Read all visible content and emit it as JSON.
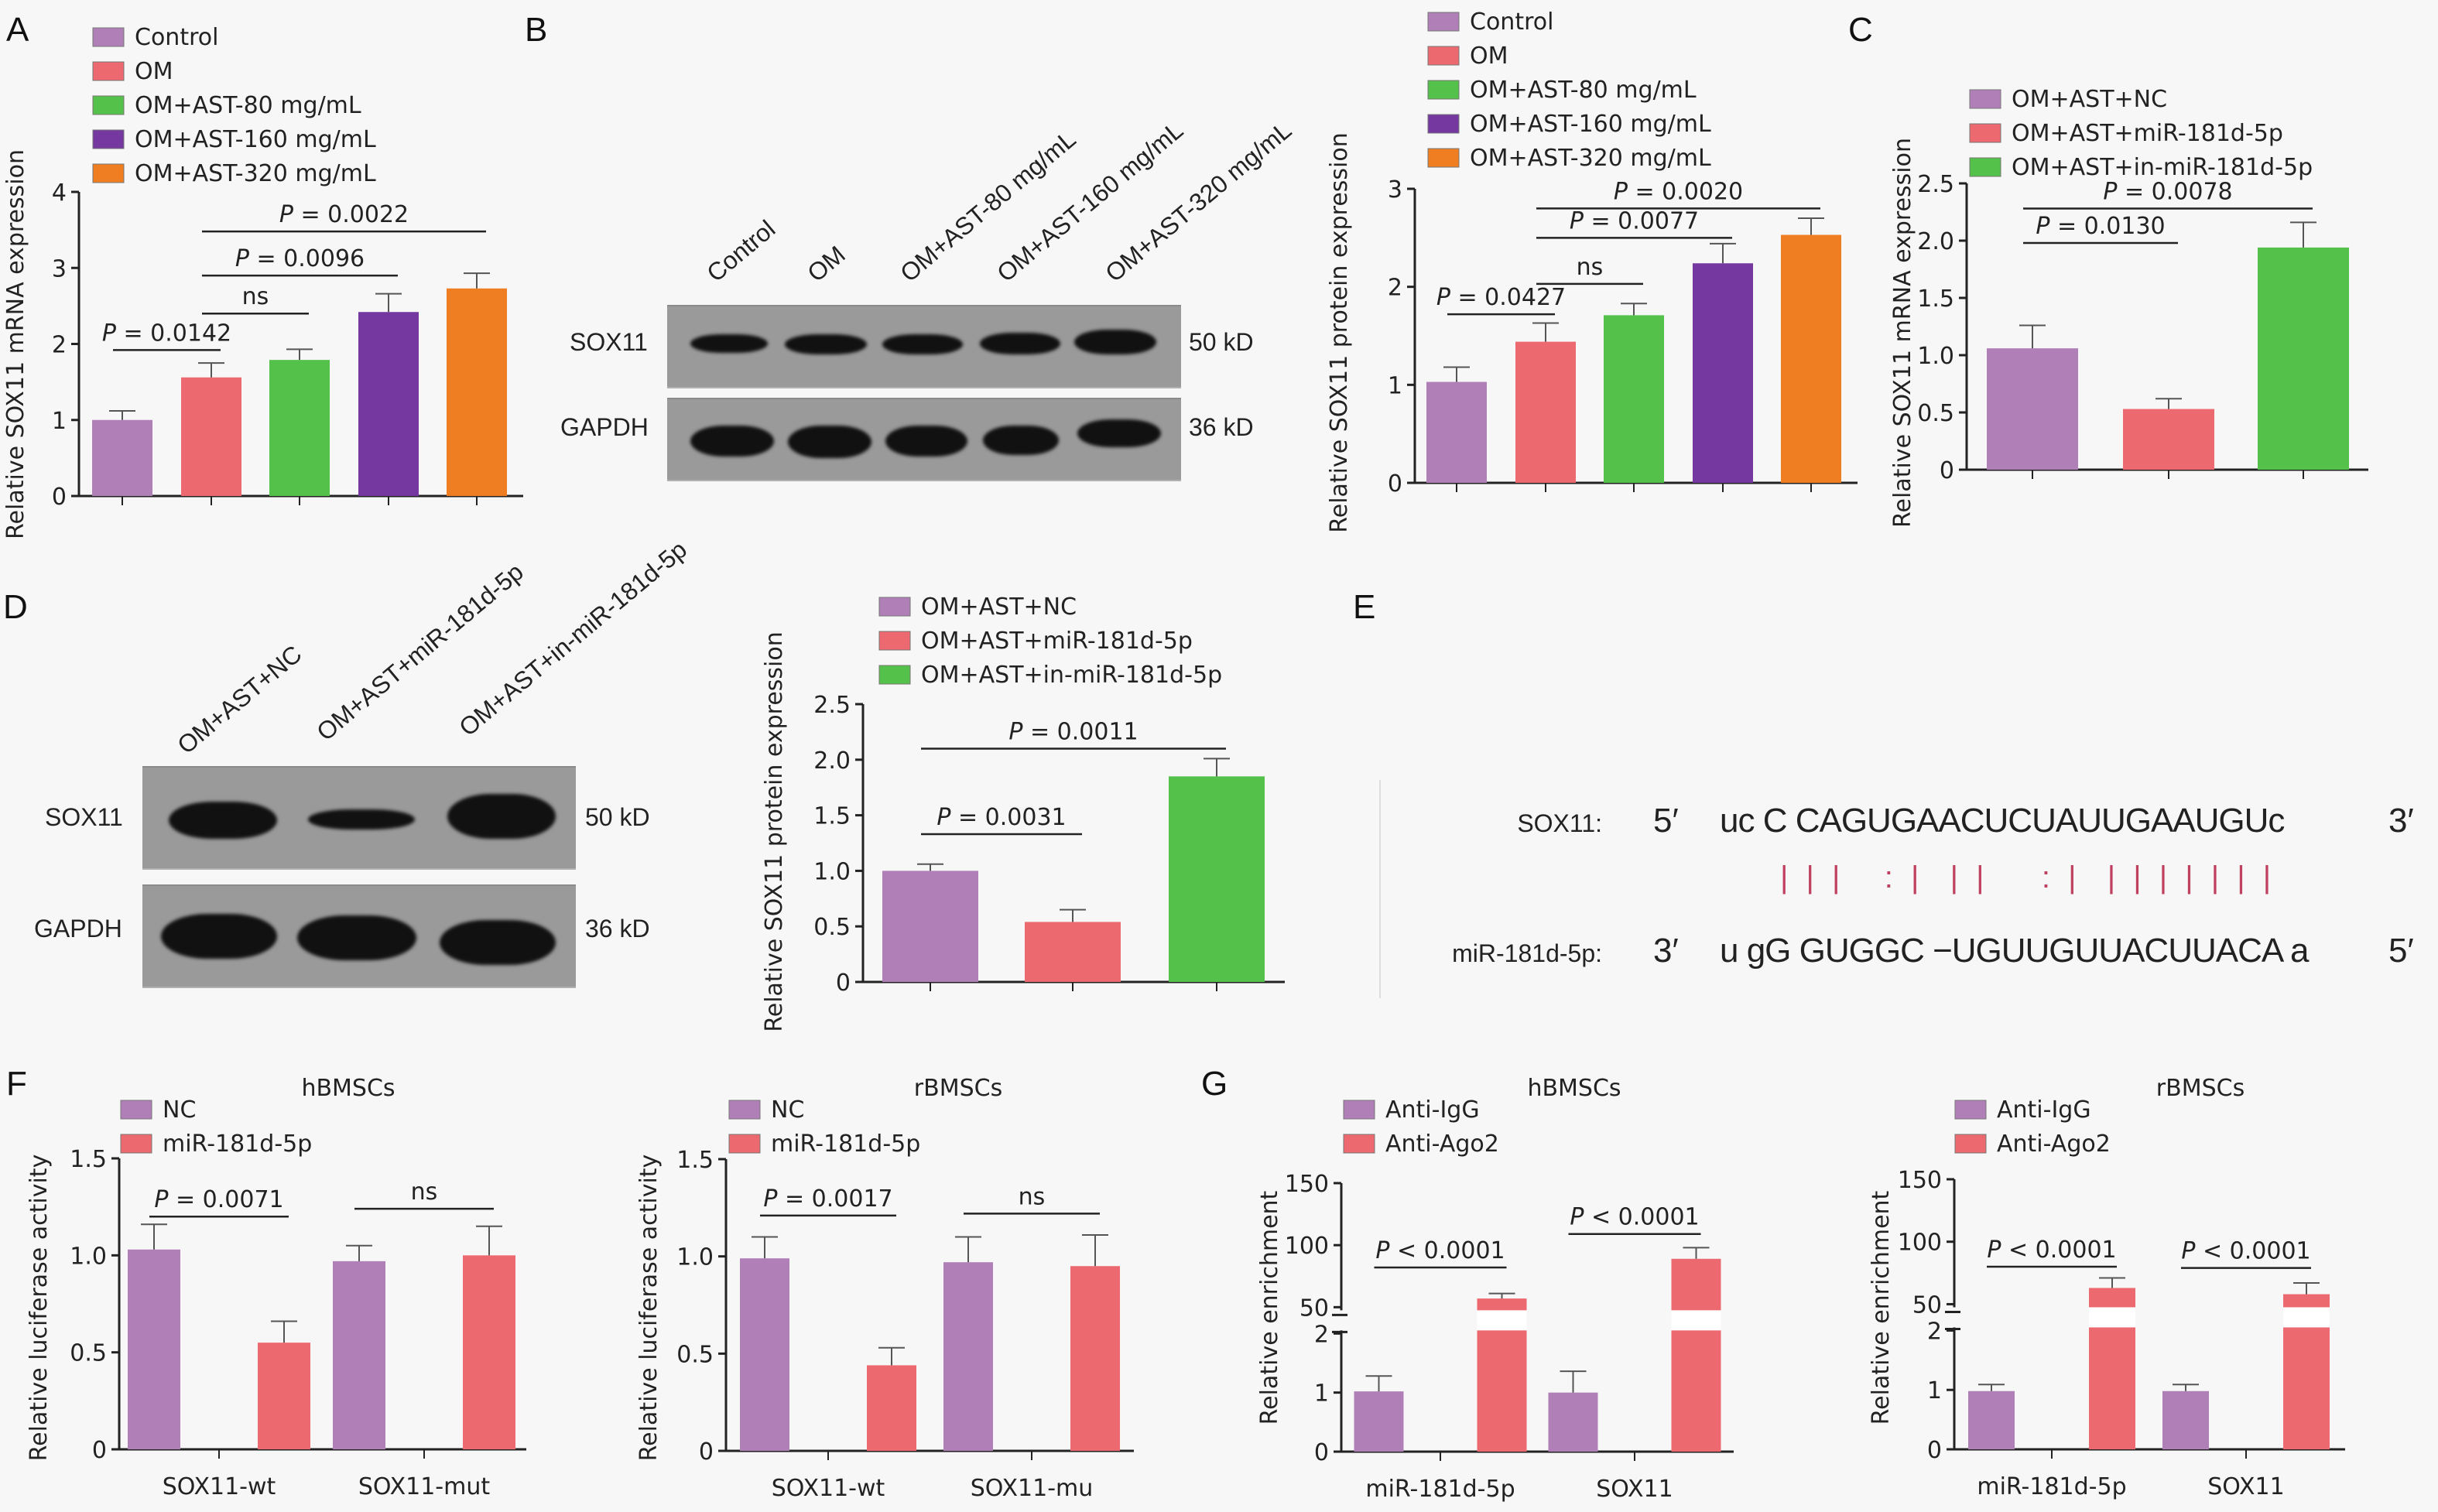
{
  "figure": {
    "panel_letters": [
      "A",
      "B",
      "C",
      "D",
      "E",
      "F",
      "G"
    ],
    "colors": {
      "control": "#b07fb8",
      "om": "#ec6a6f",
      "ast80": "#54c24a",
      "ast160": "#7538a0",
      "ast320": "#ef7d22",
      "nc": "#b07fb8",
      "mir": "#ec6a6f",
      "inmir": "#54c24a"
    }
  },
  "panelB_blot": {
    "lanes": [
      "Control",
      "OM",
      "OM+AST-80 mg/mL",
      "OM+AST-160 mg/mL",
      "OM+AST-320 mg/mL"
    ],
    "rows": [
      {
        "label": "SOX11",
        "size": "50 kD"
      },
      {
        "label": "GAPDH",
        "size": "36 kD"
      }
    ]
  },
  "panelD_blot": {
    "lanes": [
      "OM+AST+NC",
      "OM+AST+miR-181d-5p",
      "OM+AST+in-miR-181d-5p"
    ],
    "rows": [
      {
        "label": "SOX11",
        "size": "50 kD"
      },
      {
        "label": "GAPDH",
        "size": "36 kD"
      }
    ]
  },
  "panelE_seq": {
    "target_label": "SOX11:",
    "target_5": "5′",
    "target_seq": "uc C CAGUGAACUCUAUUGAAUGUc",
    "target_3": "3′",
    "pairing": "| | |   : |  | |    : |  | | | | | | |",
    "mirna_label": "miR-181d-5p:",
    "mirna_3": "3′",
    "mirna_seq": "u gG GUGGC −UGUUGUUACUUACA a",
    "mirna_5": "5′"
  },
  "chart_data": [
    {
      "id": "A",
      "type": "bar",
      "title": "",
      "ylabel": "Relative SOX11 mRNA expression",
      "xlabel": "",
      "ylim": [
        0,
        4
      ],
      "yticks": [
        "0",
        "1",
        "2",
        "3",
        "4"
      ],
      "categories": [
        "Control",
        "OM",
        "OM+AST-80 mg/mL",
        "OM+AST-160 mg/mL",
        "OM+AST-320 mg/mL"
      ],
      "values": [
        1.0,
        1.56,
        1.79,
        2.42,
        2.73
      ],
      "errors": [
        0.12,
        0.19,
        0.14,
        0.24,
        0.2
      ],
      "legend": [
        "Control",
        "OM",
        "OM+AST-80 mg/mL",
        "OM+AST-160 mg/mL",
        "OM+AST-320 mg/mL"
      ],
      "legend_position": "top-left",
      "annotations": [
        {
          "text": "P = 0.0142",
          "from": 0,
          "to": 1,
          "y": 1.92
        },
        {
          "text": "ns",
          "from": 1,
          "to": 2,
          "y": 2.4
        },
        {
          "text": "P = 0.0096",
          "from": 1,
          "to": 3,
          "y": 2.9
        },
        {
          "text": "P = 0.0022",
          "from": 1,
          "to": 4,
          "y": 3.48
        }
      ]
    },
    {
      "id": "B",
      "type": "bar",
      "ylabel": "Relative SOX11 protein expression",
      "xlabel": "",
      "ylim": [
        0,
        3
      ],
      "yticks": [
        "0",
        "1",
        "2",
        "3"
      ],
      "categories": [
        "Control",
        "OM",
        "OM+AST-80 mg/mL",
        "OM+AST-160 mg/mL",
        "OM+AST-320 mg/mL"
      ],
      "values": [
        1.03,
        1.44,
        1.71,
        2.24,
        2.53
      ],
      "errors": [
        0.15,
        0.19,
        0.12,
        0.2,
        0.17
      ],
      "legend": [
        "Control",
        "OM",
        "OM+AST-80 mg/mL",
        "OM+AST-160 mg/mL",
        "OM+AST-320 mg/mL"
      ],
      "legend_position": "top-left",
      "annotations": [
        {
          "text": "P = 0.0427",
          "from": 0,
          "to": 1,
          "y": 1.72
        },
        {
          "text": "ns",
          "from": 1,
          "to": 2,
          "y": 2.03
        },
        {
          "text": "P = 0.0077",
          "from": 1,
          "to": 3,
          "y": 2.5
        },
        {
          "text": "P = 0.0020",
          "from": 1,
          "to": 4,
          "y": 2.8
        }
      ]
    },
    {
      "id": "C",
      "type": "bar",
      "ylabel": "Relative SOX11 mRNA expression",
      "xlabel": "",
      "ylim": [
        0,
        2.5
      ],
      "yticks": [
        "0",
        "0.5",
        "1.0",
        "1.5",
        "2.0",
        "2.5"
      ],
      "categories": [
        "OM+AST+NC",
        "OM+AST+miR-181d-5p",
        "OM+AST+in-miR-181d-5p"
      ],
      "values": [
        1.06,
        0.53,
        1.94
      ],
      "errors": [
        0.2,
        0.09,
        0.22
      ],
      "legend": [
        "OM+AST+NC",
        "OM+AST+miR-181d-5p",
        "OM+AST+in-miR-181d-5p"
      ],
      "legend_position": "top-left",
      "annotations": [
        {
          "text": "P = 0.0130",
          "from": 0,
          "to": 1,
          "y": 1.98
        },
        {
          "text": "P = 0.0078",
          "from": 0,
          "to": 2,
          "y": 2.28
        }
      ]
    },
    {
      "id": "D",
      "type": "bar",
      "ylabel": "Relative SOX11 protein expression",
      "xlabel": "",
      "ylim": [
        0,
        2.5
      ],
      "yticks": [
        "0",
        "0.5",
        "1.0",
        "1.5",
        "2.0",
        "2.5"
      ],
      "categories": [
        "OM+AST+NC",
        "OM+AST+miR-181d-5p",
        "OM+AST+in-miR-181d-5p"
      ],
      "values": [
        1.0,
        0.54,
        1.85
      ],
      "errors": [
        0.06,
        0.11,
        0.16
      ],
      "legend": [
        "OM+AST+NC",
        "OM+AST+miR-181d-5p",
        "OM+AST+in-miR-181d-5p"
      ],
      "legend_position": "top-left",
      "annotations": [
        {
          "text": "P = 0.0031",
          "from": 0,
          "to": 1,
          "y": 1.33
        },
        {
          "text": "P = 0.0011",
          "from": 0,
          "to": 2,
          "y": 2.1
        }
      ]
    },
    {
      "id": "F1",
      "type": "bar",
      "title": "hBMSCs",
      "ylabel": "Relative luciferase activity",
      "xlabel": "",
      "ylim": [
        0,
        1.5
      ],
      "yticks": [
        "0",
        "0.5",
        "1.0",
        "1.5"
      ],
      "categories": [
        "SOX11-wt",
        "SOX11-mut"
      ],
      "series": [
        {
          "name": "NC",
          "values": [
            1.03,
            0.97
          ],
          "errors": [
            0.13,
            0.08
          ]
        },
        {
          "name": "miR-181d-5p",
          "values": [
            0.55,
            1.0
          ],
          "errors": [
            0.11,
            0.15
          ]
        }
      ],
      "legend_position": "top-left",
      "annotations": [
        {
          "text": "P = 0.0071",
          "group": 0,
          "y": 1.2
        },
        {
          "text": "ns",
          "group": 1,
          "y": 1.24
        }
      ]
    },
    {
      "id": "F2",
      "type": "bar",
      "title": "rBMSCs",
      "ylabel": "Relative luciferase activity",
      "xlabel": "",
      "ylim": [
        0,
        1.5
      ],
      "yticks": [
        "0",
        "0.5",
        "1.0",
        "1.5"
      ],
      "categories": [
        "SOX11-wt",
        "SOX11-mu"
      ],
      "series": [
        {
          "name": "NC",
          "values": [
            0.99,
            0.97
          ],
          "errors": [
            0.11,
            0.13
          ]
        },
        {
          "name": "miR-181d-5p",
          "values": [
            0.44,
            0.95
          ],
          "errors": [
            0.09,
            0.16
          ]
        }
      ],
      "legend_position": "top-left",
      "annotations": [
        {
          "text": "P = 0.0017",
          "group": 0,
          "y": 1.21
        },
        {
          "text": "ns",
          "group": 1,
          "y": 1.22
        }
      ]
    },
    {
      "id": "G1",
      "type": "bar",
      "title": "hBMSCs",
      "ylabel": "Relative enrichment",
      "xlabel": "",
      "ylim": [
        0,
        150
      ],
      "axis_break": [
        2,
        50
      ],
      "yticks": [
        "0",
        "1",
        "2",
        "50",
        "100",
        "150"
      ],
      "categories": [
        "miR-181d-5p",
        "SOX11"
      ],
      "series": [
        {
          "name": "Anti-IgG",
          "values": [
            1.02,
            1.0
          ],
          "errors": [
            0.26,
            0.36
          ]
        },
        {
          "name": "Anti-Ago2",
          "values": [
            57,
            89
          ],
          "errors": [
            4,
            9
          ]
        }
      ],
      "legend_position": "top-left",
      "annotations": [
        {
          "text": "P < 0.0001",
          "group": 0,
          "y": 82
        },
        {
          "text": "P < 0.0001",
          "group": 1,
          "y": 109
        }
      ]
    },
    {
      "id": "G2",
      "type": "bar",
      "title": "rBMSCs",
      "ylabel": "Relative enrichment",
      "xlabel": "",
      "ylim": [
        0,
        150
      ],
      "axis_break": [
        2,
        50
      ],
      "yticks": [
        "0",
        "1",
        "2",
        "50",
        "100",
        "150"
      ],
      "categories": [
        "miR-181d-5p",
        "SOX11"
      ],
      "series": [
        {
          "name": "Anti-IgG",
          "values": [
            0.98,
            0.98
          ],
          "errors": [
            0.11,
            0.11
          ]
        },
        {
          "name": "Anti-Ago2",
          "values": [
            63,
            58
          ],
          "errors": [
            8,
            9
          ]
        }
      ],
      "legend_position": "top-left",
      "annotations": [
        {
          "text": "P < 0.0001",
          "group": 0,
          "y": 80
        },
        {
          "text": "P < 0.0001",
          "group": 1,
          "y": 79
        }
      ]
    }
  ]
}
